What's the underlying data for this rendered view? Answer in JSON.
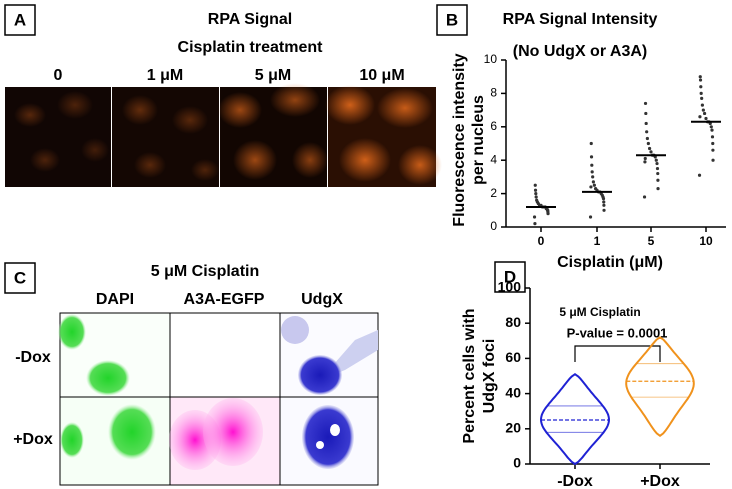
{
  "panels": {
    "a": {
      "label": "A",
      "title": [
        "RPA Signal",
        "Cisplatin treatment"
      ],
      "columns": [
        "0",
        "1 μM",
        "5 μM",
        "10 μM"
      ]
    },
    "c": {
      "label": "C",
      "title": "5 μM Cisplatin",
      "columns": [
        "DAPI",
        "A3A-EGFP",
        "UdgX"
      ],
      "rows": [
        "-Dox",
        "+Dox"
      ]
    }
  },
  "chart_data": [
    {
      "type": "scatter",
      "panel_label": "B",
      "title": "RPA Signal Intensity",
      "subtitle": "(No UdgX or A3A)",
      "ylabel": [
        "Fluorescence intensity",
        "per nucleus"
      ],
      "xlabel": "Cisplatin (μM)",
      "categories": [
        "0",
        "1",
        "5",
        "10"
      ],
      "points": [
        [
          0.6,
          0.8,
          0.9,
          1.0,
          1.0,
          1.1,
          1.1,
          1.2,
          1.2,
          1.2,
          1.3,
          1.3,
          1.4,
          1.5,
          1.6,
          1.8,
          2.0,
          2.2,
          2.5,
          0.2
        ],
        [
          0.6,
          1.0,
          1.3,
          1.5,
          1.7,
          1.8,
          1.9,
          2.0,
          2.1,
          2.1,
          2.2,
          2.3,
          2.5,
          2.7,
          3.0,
          3.3,
          3.7,
          4.2,
          5.0,
          2.4
        ],
        [
          1.8,
          2.3,
          2.8,
          3.2,
          3.5,
          3.8,
          4.0,
          4.2,
          4.3,
          4.3,
          4.5,
          4.7,
          5.0,
          5.3,
          5.7,
          6.2,
          6.8,
          7.4,
          4.1,
          3.9
        ],
        [
          3.1,
          4.0,
          4.6,
          5.0,
          5.4,
          5.8,
          6.0,
          6.2,
          6.3,
          6.3,
          6.5,
          6.8,
          7.0,
          7.3,
          7.7,
          8.0,
          8.4,
          8.8,
          9.0,
          6.6
        ]
      ],
      "medians": [
        1.2,
        2.1,
        4.3,
        6.3
      ],
      "color": "#333333",
      "ylim": [
        0,
        10
      ],
      "yticks": [
        0,
        2,
        4,
        6,
        8,
        10
      ]
    },
    {
      "type": "violin",
      "panel_label": "D",
      "ylabel": [
        "Percent cells with",
        "UdgX foci"
      ],
      "annotations": [
        "5 μM Cisplatin",
        "P-value = 0.0001"
      ],
      "categories": [
        "-Dox",
        "+Dox"
      ],
      "series": [
        {
          "color": "#1f22d4",
          "min": 0,
          "q1": 18,
          "median": 25,
          "q3": 33,
          "max": 51
        },
        {
          "color": "#f0921c",
          "min": 16,
          "q1": 38,
          "median": 47,
          "q3": 57,
          "max": 72
        }
      ],
      "ylim": [
        0,
        100
      ],
      "yticks": [
        0,
        20,
        40,
        60,
        80,
        100
      ]
    }
  ]
}
